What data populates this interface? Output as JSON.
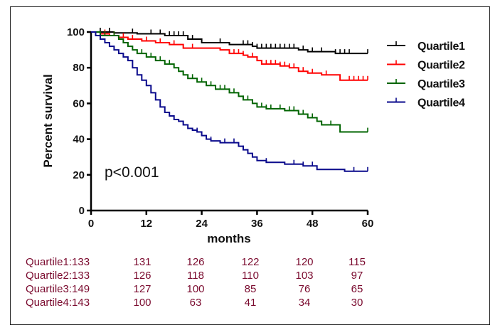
{
  "chart_data": {
    "type": "line",
    "subtype": "kaplan-meier",
    "xlabel": "months",
    "ylabel": "Percent survival",
    "xlim": [
      0,
      60
    ],
    "ylim": [
      0,
      100
    ],
    "xticks": [
      "0",
      "12",
      "24",
      "36",
      "48",
      "60"
    ],
    "yticks": [
      "0",
      "20",
      "40",
      "60",
      "80",
      "100"
    ],
    "grid": false,
    "legend_position": "top-right",
    "annotation": "p<0.001",
    "series": [
      {
        "name": "Quartile1",
        "color": "#000000",
        "steps": [
          [
            0,
            100
          ],
          [
            5,
            99.5
          ],
          [
            10,
            99
          ],
          [
            16,
            98
          ],
          [
            21,
            96
          ],
          [
            24,
            94
          ],
          [
            30,
            93
          ],
          [
            35,
            92
          ],
          [
            36,
            91
          ],
          [
            45,
            90
          ],
          [
            47,
            89
          ],
          [
            53,
            88
          ],
          [
            60,
            88
          ]
        ],
        "censor_months": [
          2,
          4,
          9,
          13,
          15,
          17,
          18,
          19,
          20,
          22,
          28,
          33,
          34,
          35,
          36,
          37,
          38,
          39,
          40,
          41,
          42,
          43,
          44,
          46,
          48,
          50,
          53,
          54,
          55,
          56,
          60
        ]
      },
      {
        "name": "Quartile2",
        "color": "#ff0000",
        "steps": [
          [
            0,
            100
          ],
          [
            2,
            99
          ],
          [
            4,
            98
          ],
          [
            6,
            97
          ],
          [
            8,
            96
          ],
          [
            11,
            95
          ],
          [
            14,
            94
          ],
          [
            17,
            93
          ],
          [
            20,
            91
          ],
          [
            24,
            91
          ],
          [
            28,
            90
          ],
          [
            30,
            88
          ],
          [
            33,
            87
          ],
          [
            34,
            86
          ],
          [
            36,
            84
          ],
          [
            37,
            82
          ],
          [
            41,
            81
          ],
          [
            43,
            80
          ],
          [
            45,
            78
          ],
          [
            47,
            77
          ],
          [
            50,
            76
          ],
          [
            54,
            73
          ],
          [
            60,
            73
          ]
        ],
        "censor_months": [
          3,
          5,
          7,
          9,
          12,
          15,
          18,
          22,
          31,
          32,
          33,
          35,
          36,
          37,
          38,
          39,
          40,
          41,
          42,
          43,
          44,
          46,
          48,
          51,
          56,
          57,
          58,
          59,
          60
        ]
      },
      {
        "name": "Quartile3",
        "color": "#006400",
        "steps": [
          [
            0,
            100
          ],
          [
            2,
            98
          ],
          [
            6,
            96
          ],
          [
            7,
            94
          ],
          [
            8,
            92
          ],
          [
            9,
            90
          ],
          [
            10,
            88
          ],
          [
            12,
            86
          ],
          [
            14,
            84
          ],
          [
            16,
            82
          ],
          [
            18,
            80
          ],
          [
            19,
            78
          ],
          [
            20,
            76
          ],
          [
            21,
            74
          ],
          [
            23,
            72
          ],
          [
            25,
            70
          ],
          [
            27,
            68
          ],
          [
            30,
            66
          ],
          [
            32,
            64
          ],
          [
            33,
            62
          ],
          [
            35,
            60
          ],
          [
            36,
            58
          ],
          [
            38,
            57
          ],
          [
            42,
            56
          ],
          [
            45,
            54
          ],
          [
            47,
            52
          ],
          [
            49,
            50
          ],
          [
            50,
            48
          ],
          [
            54,
            44
          ],
          [
            60,
            44
          ]
        ],
        "censor_months": [
          3,
          5,
          8,
          11,
          13,
          15,
          17,
          20,
          22,
          24,
          26,
          28,
          29,
          30,
          31,
          33,
          34,
          35,
          37,
          38,
          39,
          41,
          43,
          44,
          45,
          46,
          48,
          50,
          52,
          60
        ]
      },
      {
        "name": "Quartile4",
        "color": "#0a0a8c",
        "steps": [
          [
            0,
            100
          ],
          [
            1,
            98
          ],
          [
            2,
            96
          ],
          [
            3,
            94
          ],
          [
            4,
            92
          ],
          [
            5,
            90
          ],
          [
            6,
            88
          ],
          [
            7,
            86
          ],
          [
            8,
            84
          ],
          [
            9,
            80
          ],
          [
            10,
            76
          ],
          [
            11,
            73
          ],
          [
            12,
            70
          ],
          [
            13,
            66
          ],
          [
            14,
            62
          ],
          [
            15,
            58
          ],
          [
            16,
            55
          ],
          [
            17,
            53
          ],
          [
            18,
            51
          ],
          [
            19,
            50
          ],
          [
            20,
            48
          ],
          [
            21,
            46
          ],
          [
            22,
            45
          ],
          [
            23,
            44
          ],
          [
            24,
            42
          ],
          [
            25,
            40
          ],
          [
            26,
            39
          ],
          [
            28,
            38
          ],
          [
            31,
            38
          ],
          [
            32,
            36
          ],
          [
            33,
            34
          ],
          [
            34,
            32
          ],
          [
            35,
            30
          ],
          [
            36,
            28
          ],
          [
            38,
            27
          ],
          [
            42,
            26
          ],
          [
            46,
            25
          ],
          [
            49,
            23
          ],
          [
            55,
            22
          ],
          [
            60,
            22
          ]
        ],
        "censor_months": [
          20,
          23,
          24,
          26,
          29,
          31,
          33,
          34,
          38,
          44,
          46,
          48,
          57,
          60
        ]
      }
    ],
    "risk_table": {
      "rows": [
        {
          "label": "Quartile1:133",
          "values": [
            "131",
            "126",
            "122",
            "120",
            "115"
          ]
        },
        {
          "label": "Quartile2:133",
          "values": [
            "126",
            "118",
            "110",
            "103",
            "97"
          ]
        },
        {
          "label": "Quartile3:149",
          "values": [
            "127",
            "100",
            "85",
            "76",
            "65"
          ]
        },
        {
          "label": "Quartile4:143",
          "values": [
            "100",
            "63",
            "41",
            "34",
            "30"
          ]
        }
      ]
    }
  }
}
